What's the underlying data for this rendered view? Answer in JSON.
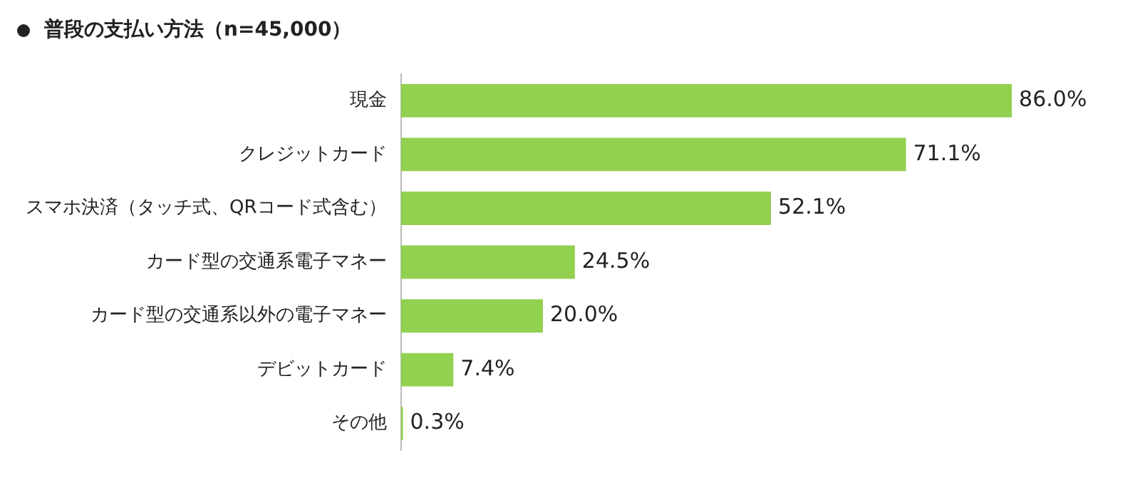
{
  "chart_data": {
    "type": "bar",
    "orientation": "horizontal",
    "title": "普段の支払い方法（n=45,000）",
    "categories": [
      "現金",
      "クレジットカード",
      "スマホ決済（タッチ式、QRコード式含む）",
      "カード型の交通系電子マネー",
      "カード型の交通系以外の電子マネー",
      "デビットカード",
      "その他"
    ],
    "values": [
      86.0,
      71.1,
      52.1,
      24.5,
      20.0,
      7.4,
      0.3
    ],
    "value_labels": [
      "86.0%",
      "71.1%",
      "52.1%",
      "24.5%",
      "20.0%",
      "7.4%",
      "0.3%"
    ],
    "color": "#92d050"
  }
}
